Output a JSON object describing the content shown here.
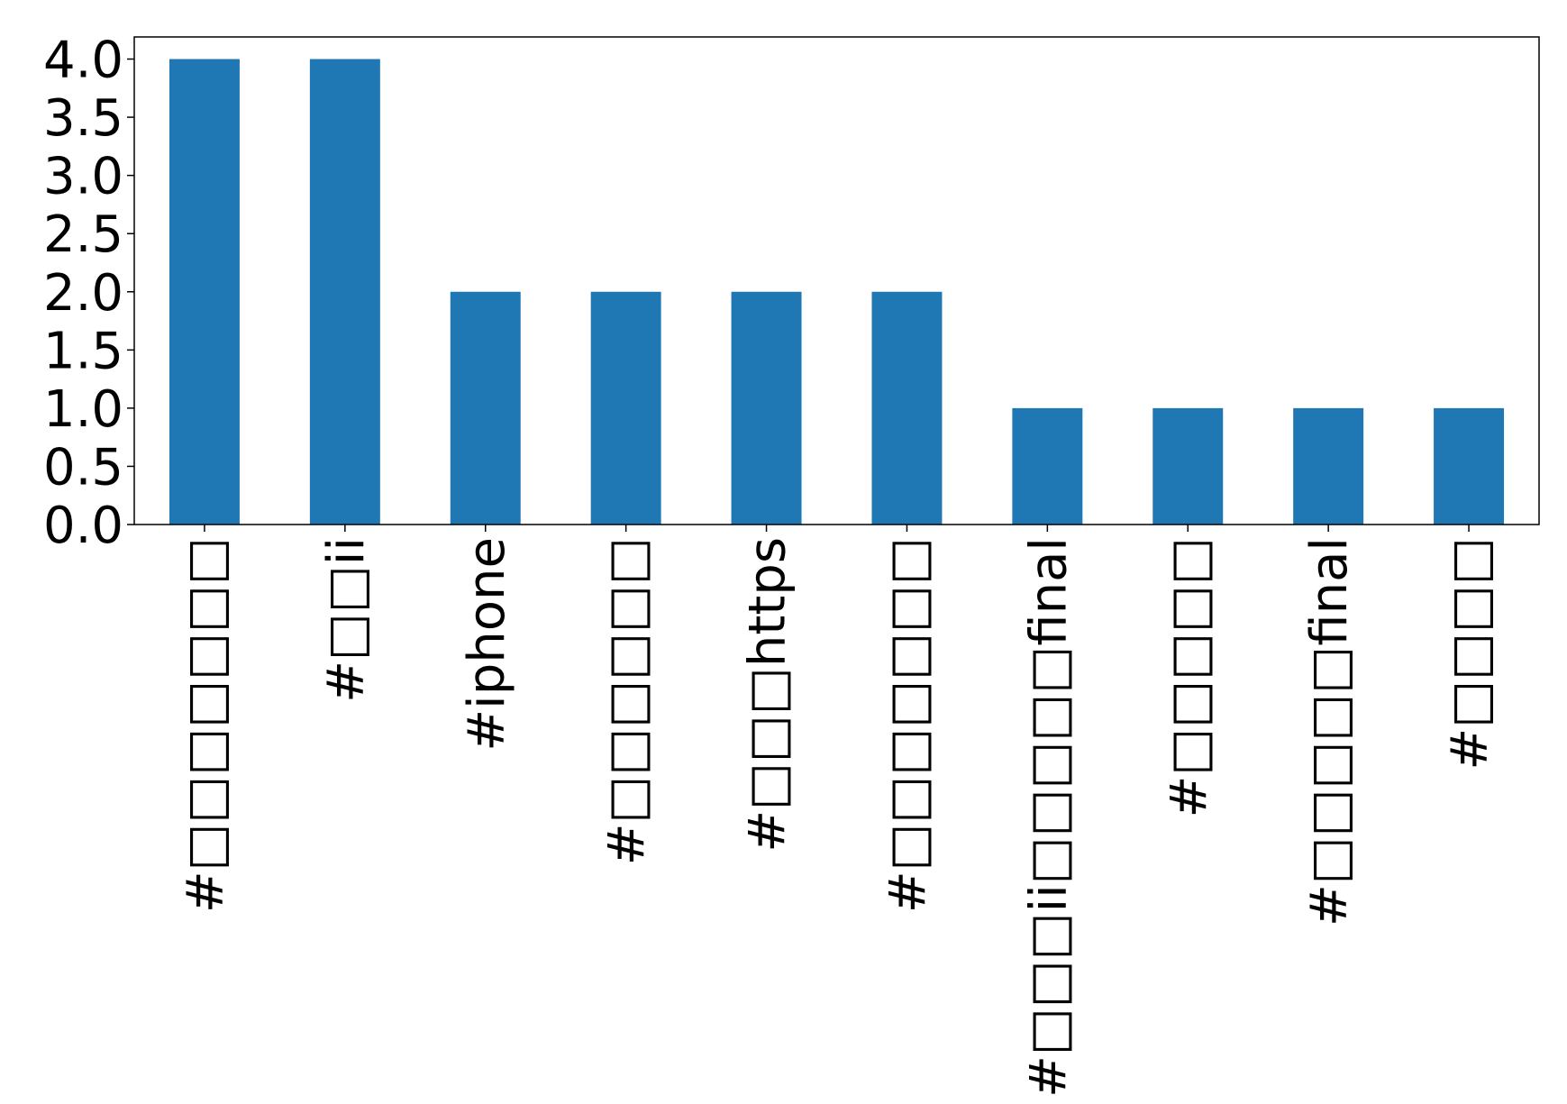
{
  "chart_data": {
    "type": "bar",
    "categories": [
      "#□□□□□□□",
      "#□□ii",
      "#iphone",
      "#□□□□□□",
      "#□□□https",
      "#□□□□□□□",
      "#□□□ii□□□□□final",
      "#□□□□□",
      "#□□□□□final",
      "#□□□□"
    ],
    "values": [
      4,
      4,
      2,
      2,
      2,
      2,
      1,
      1,
      1,
      1
    ],
    "color": "#1f77b4",
    "ylim": [
      0,
      4.19
    ],
    "yticks": [
      {
        "value": 0,
        "label": "0.0"
      },
      0.5,
      {
        "value": 1,
        "label": "1.0"
      },
      1.5,
      {
        "value": 2,
        "label": "2.0"
      },
      2.5,
      {
        "value": 3,
        "label": "3.0"
      },
      3.5,
      {
        "value": 4,
        "label": "4.0"
      }
    ]
  }
}
